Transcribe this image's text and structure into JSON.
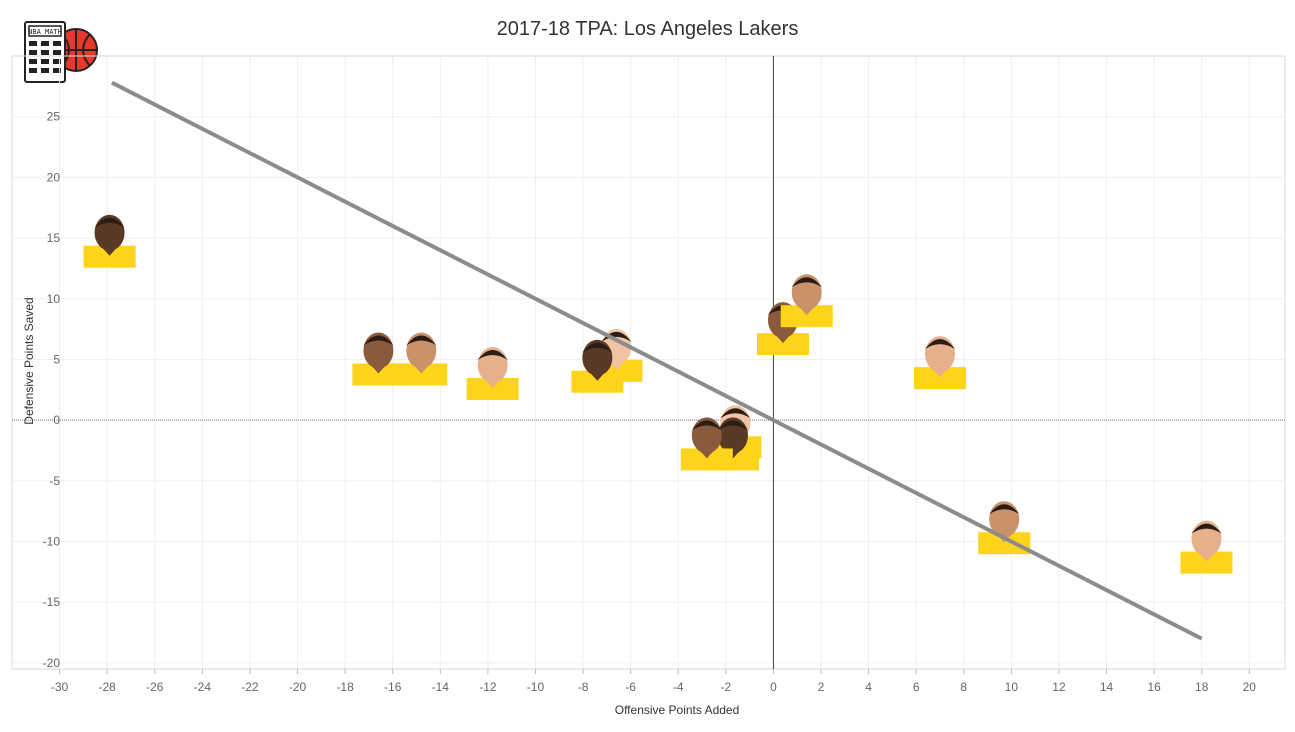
{
  "chart_data": {
    "type": "scatter",
    "title": "2017-18 TPA: Los Angeles Lakers",
    "xlabel": "Offensive Points Added",
    "ylabel": "Defensive Points Saved",
    "xlim": [
      -32,
      21.5
    ],
    "ylim": [
      -20.5,
      30
    ],
    "xticks": [
      -30,
      -28,
      -26,
      -24,
      -22,
      -20,
      -18,
      -16,
      -14,
      -12,
      -10,
      -8,
      -6,
      -4,
      -2,
      0,
      2,
      4,
      6,
      8,
      10,
      12,
      14,
      16,
      18,
      20
    ],
    "yticks": [
      -20,
      -15,
      -10,
      -5,
      0,
      5,
      10,
      15,
      20,
      25
    ],
    "grid": true,
    "marker": "player-headshot",
    "points": [
      {
        "x": -27.9,
        "y": 14.7
      },
      {
        "x": -16.6,
        "y": 5.0
      },
      {
        "x": -14.8,
        "y": 5.0
      },
      {
        "x": -11.8,
        "y": 3.8
      },
      {
        "x": -6.6,
        "y": 5.3
      },
      {
        "x": -7.4,
        "y": 4.4
      },
      {
        "x": 0.4,
        "y": 7.5
      },
      {
        "x": 1.4,
        "y": 9.8
      },
      {
        "x": 7.0,
        "y": 4.7
      },
      {
        "x": -1.6,
        "y": -1.0
      },
      {
        "x": -1.7,
        "y": -2.0
      },
      {
        "x": -2.8,
        "y": -2.0
      },
      {
        "x": 9.7,
        "y": -8.9
      },
      {
        "x": 18.2,
        "y": -10.5
      }
    ],
    "trendline": {
      "x": [
        -27.8,
        18.0
      ],
      "y": [
        27.8,
        -18.0
      ]
    }
  }
}
